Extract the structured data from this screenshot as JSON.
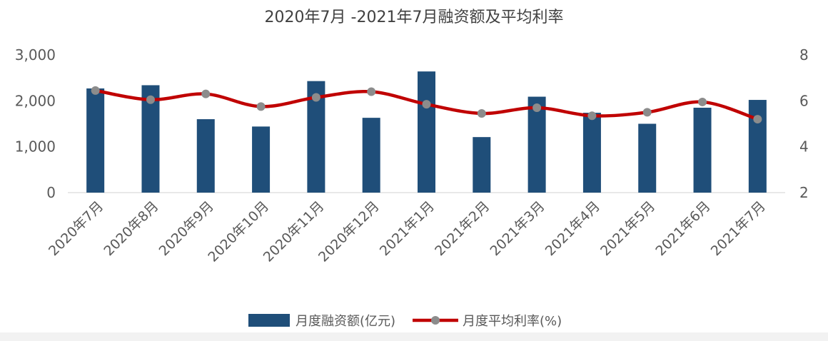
{
  "chart_data": {
    "type": "bar+line",
    "title": "2020年7月 -2021年7月融资额及平均利率",
    "categories": [
      "2020年7月",
      "2020年8月",
      "2020年9月",
      "2020年10月",
      "2020年11月",
      "2020年12月",
      "2021年1月",
      "2021年2月",
      "2021年3月",
      "2021年4月",
      "2021年5月",
      "2021年6月",
      "2021年7月"
    ],
    "series": [
      {
        "name": "月度融资额(亿元)",
        "type": "bar",
        "axis": "left",
        "values": [
          2270,
          2340,
          1600,
          1440,
          2430,
          1630,
          2640,
          1210,
          2090,
          1740,
          1500,
          1850,
          2020
        ]
      },
      {
        "name": "月度平均利率(%)",
        "type": "line",
        "axis": "right",
        "values": [
          6.45,
          6.05,
          6.3,
          5.75,
          6.15,
          6.4,
          5.85,
          5.45,
          5.7,
          5.35,
          5.5,
          5.95,
          5.2
        ]
      }
    ],
    "y_left": {
      "min": 0,
      "max": 3000,
      "ticks": [
        0,
        1000,
        2000,
        3000
      ],
      "tick_labels": [
        "0",
        "1,000",
        "2,000",
        "3,000"
      ]
    },
    "y_right": {
      "min": 2,
      "max": 8,
      "ticks": [
        2,
        4,
        6,
        8
      ],
      "tick_labels": [
        "2",
        "4",
        "6",
        "8"
      ]
    },
    "grid": false,
    "legend_position": "bottom",
    "colors": {
      "bar": "#1f4e79",
      "line": "#c00000",
      "marker": "#8c8c8c",
      "axis": "#d9d9d9"
    }
  }
}
